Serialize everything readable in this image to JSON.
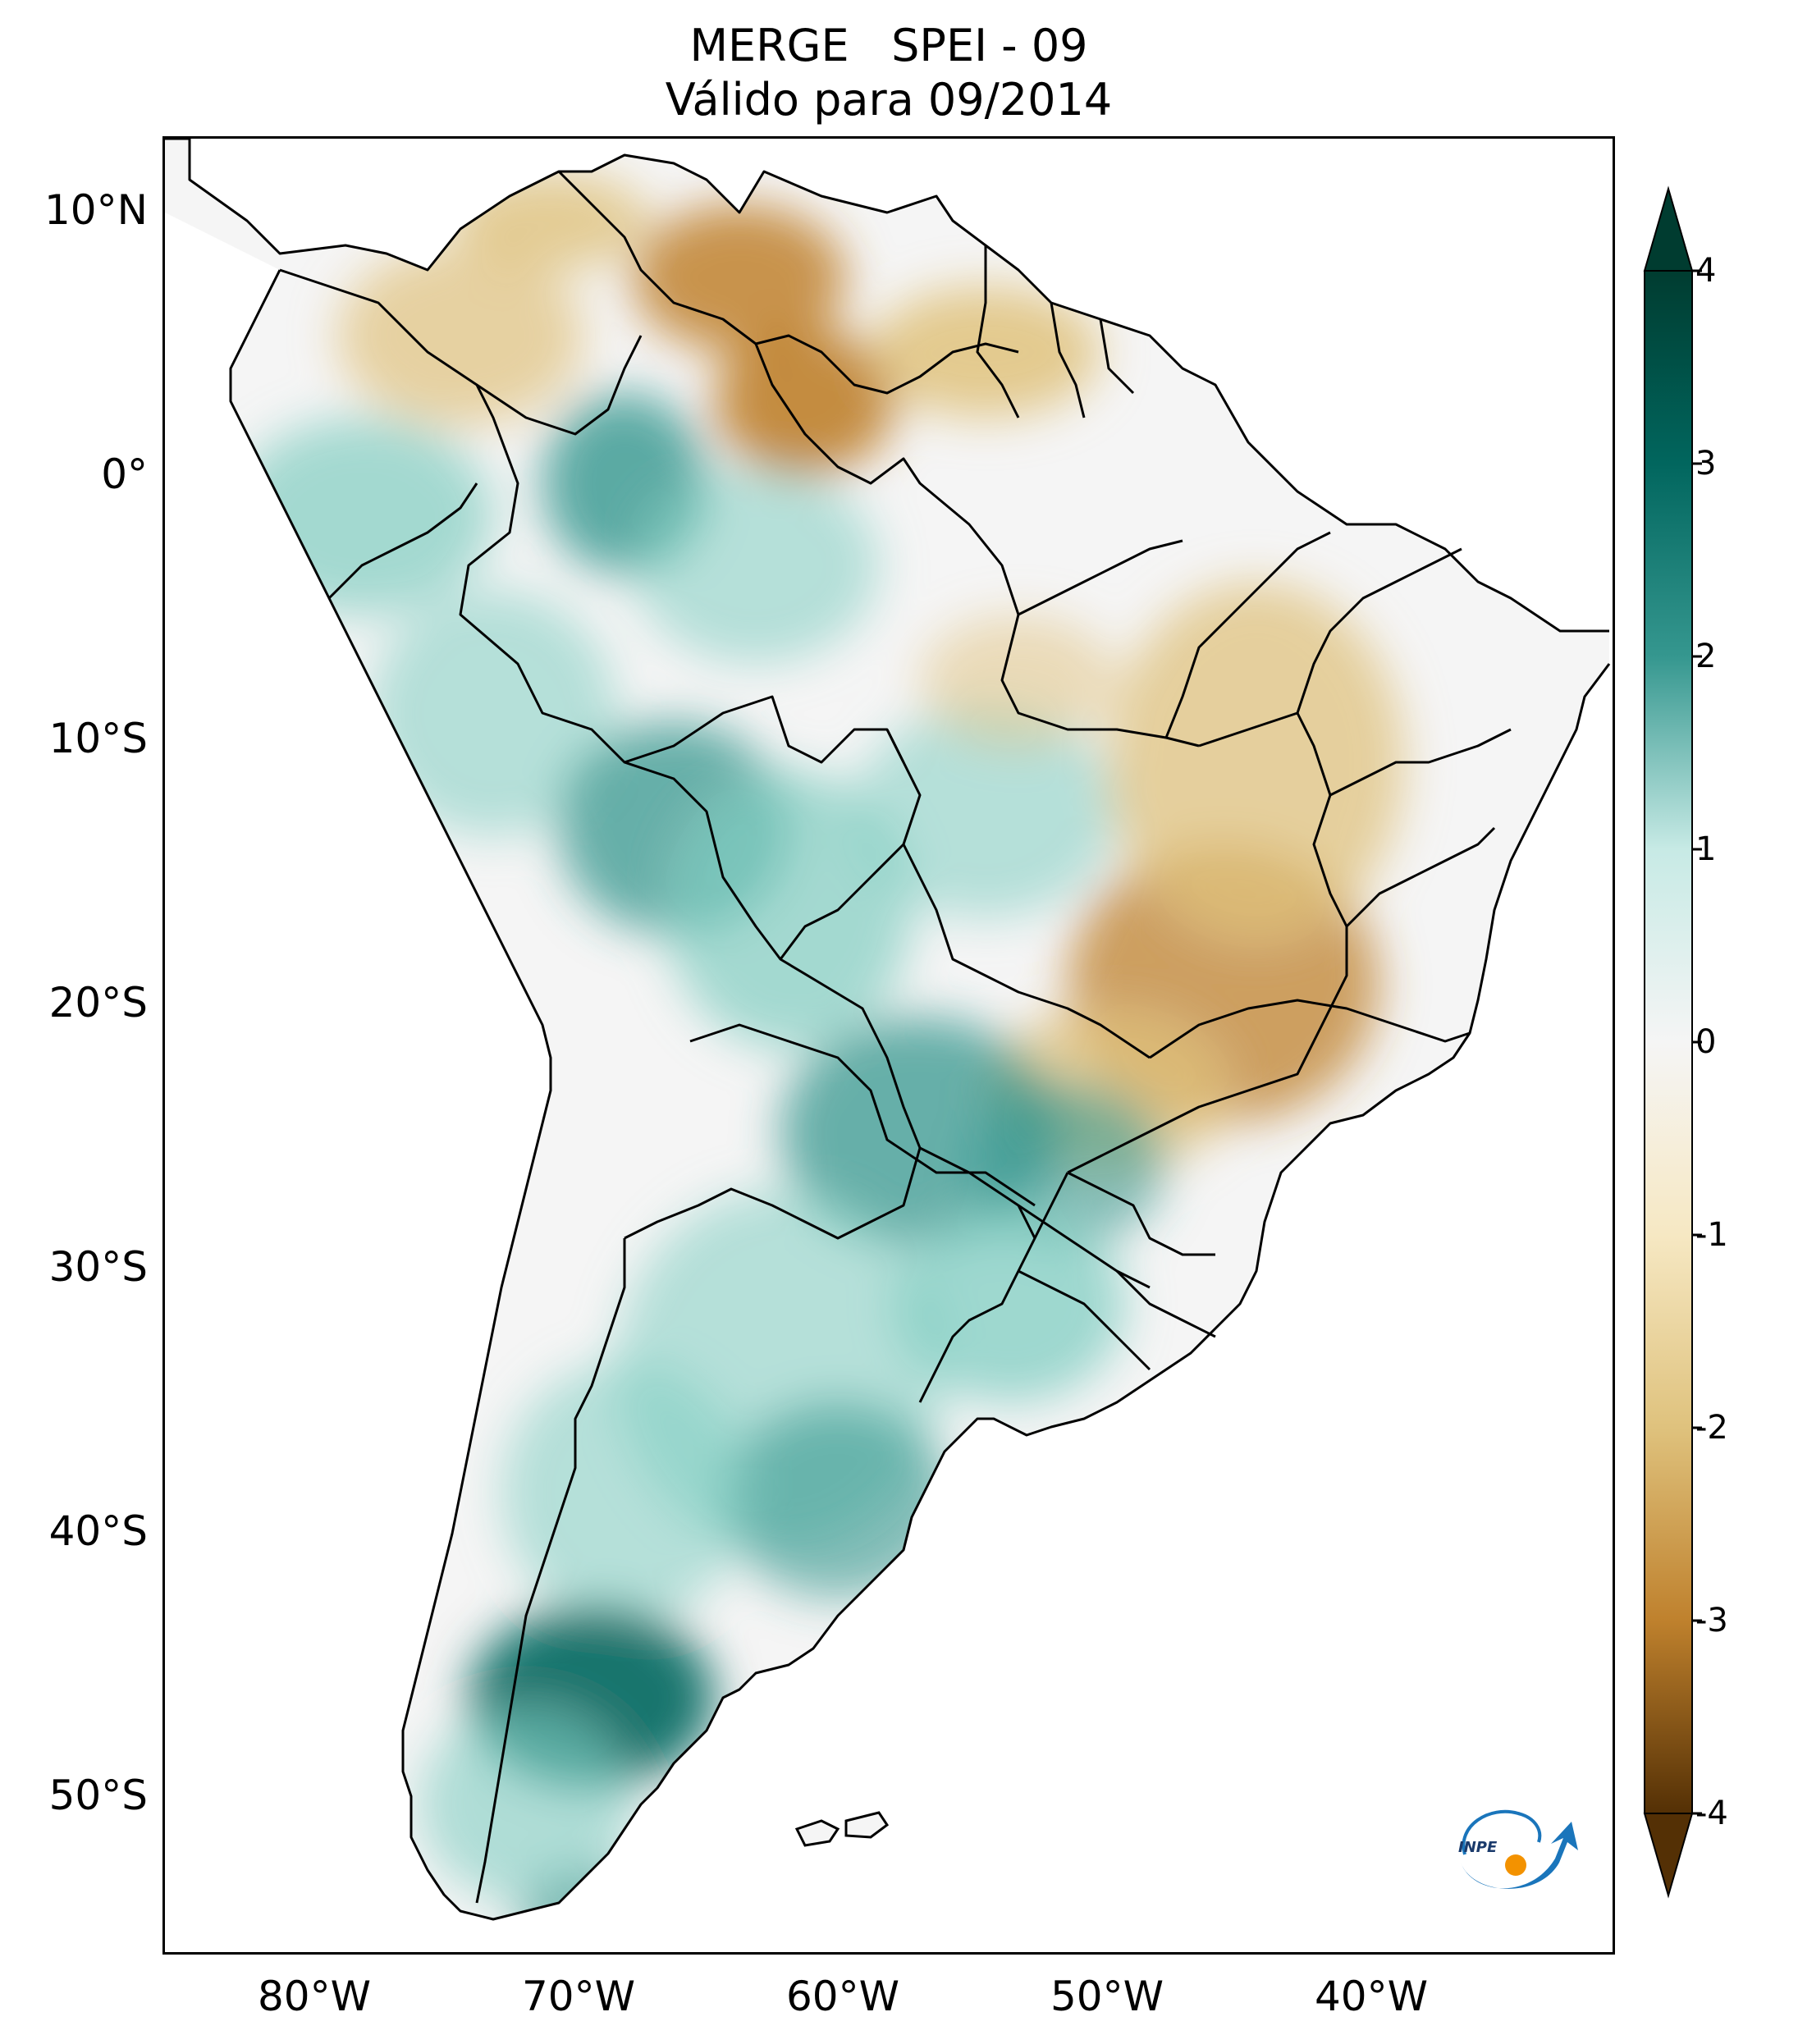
{
  "title": {
    "line1": "MERGE   SPEI - 09",
    "line2": "Válido para 09/2014"
  },
  "axes": {
    "lat_ticks": [
      "10°N",
      "0°",
      "10°S",
      "20°S",
      "30°S",
      "40°S",
      "50°S"
    ],
    "lon_ticks": [
      "80°W",
      "70°W",
      "60°W",
      "50°W",
      "40°W"
    ]
  },
  "colorbar": {
    "ticks": [
      "4",
      "3",
      "2",
      "1",
      "0",
      "-1",
      "-2",
      "-3",
      "-4"
    ],
    "range": [
      -4,
      4
    ],
    "extend": "both",
    "colors": {
      "dry_extreme": "#543005",
      "dry_strong": "#8c510a",
      "dry_moderate": "#bf812d",
      "dry_mild": "#dfc27d",
      "dry_light": "#f6e8c3",
      "neutral": "#f5f5f5",
      "wet_light": "#c7eae5",
      "wet_mild": "#80cdc1",
      "wet_moderate": "#35978f",
      "wet_strong": "#01665e",
      "wet_extreme": "#003c30"
    }
  },
  "logo": {
    "text": "INPE",
    "colors": {
      "arrow": "#1a75bb",
      "dot": "#f39200"
    }
  },
  "map": {
    "data_anomalies": [
      {
        "region": "northern Venezuela / Guianas",
        "level": "dry_moderate"
      },
      {
        "region": "northern Colombia",
        "level": "dry_mild"
      },
      {
        "region": "western Amazon",
        "level": "wet_moderate"
      },
      {
        "region": "Bolivia / Rondônia",
        "level": "wet_moderate"
      },
      {
        "region": "Paraguay / southern Brazil",
        "level": "wet_moderate"
      },
      {
        "region": "Minas Gerais / São Paulo",
        "level": "dry_moderate"
      },
      {
        "region": "northeast Brazil",
        "level": "dry_mild"
      },
      {
        "region": "northern Patagonia",
        "level": "wet_strong"
      },
      {
        "region": "southern Patagonia",
        "level": "wet_mild"
      }
    ]
  }
}
